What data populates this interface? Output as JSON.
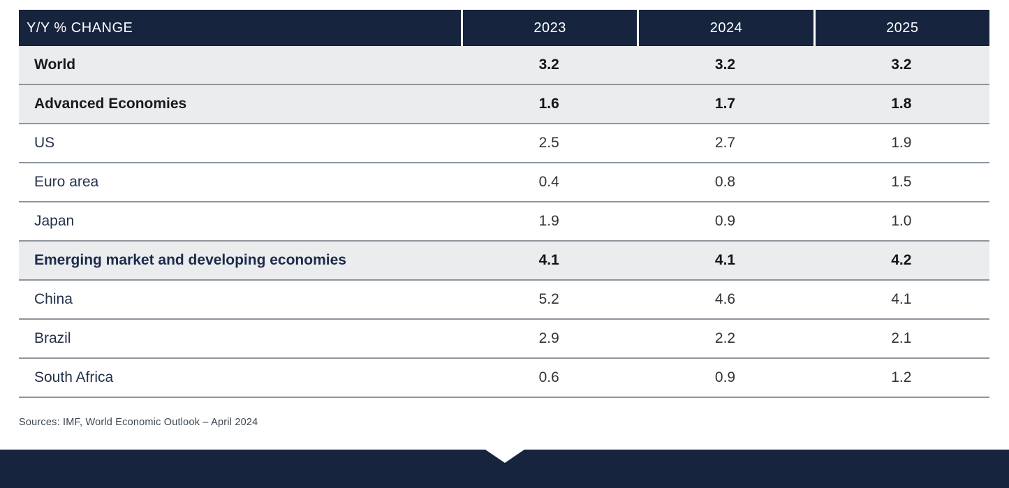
{
  "table": {
    "header": {
      "label": "Y/Y % CHANGE",
      "years": [
        "2023",
        "2024",
        "2025"
      ]
    },
    "rows": [
      {
        "label": "World",
        "values": [
          "3.2",
          "3.2",
          "3.2"
        ],
        "emphasis": true
      },
      {
        "label": "Advanced Economies",
        "values": [
          "1.6",
          "1.7",
          "1.8"
        ],
        "emphasis": true
      },
      {
        "label": "US",
        "values": [
          "2.5",
          "2.7",
          "1.9"
        ],
        "emphasis": false
      },
      {
        "label": "Euro area",
        "values": [
          "0.4",
          "0.8",
          "1.5"
        ],
        "emphasis": false
      },
      {
        "label": "Japan",
        "values": [
          "1.9",
          "0.9",
          "1.0"
        ],
        "emphasis": false
      },
      {
        "label": "Emerging market and developing economies",
        "values": [
          "4.1",
          "4.1",
          "4.2"
        ],
        "emphasis": true
      },
      {
        "label": "China",
        "values": [
          "5.2",
          "4.6",
          "4.1"
        ],
        "emphasis": false
      },
      {
        "label": "Brazil",
        "values": [
          "2.9",
          "2.2",
          "2.1"
        ],
        "emphasis": false
      },
      {
        "label": "South Africa",
        "values": [
          "0.6",
          "0.9",
          "1.2"
        ],
        "emphasis": false
      }
    ]
  },
  "footer": {
    "source": "Sources: IMF, World Economic Outlook – April 2024"
  },
  "colors": {
    "navy": "#16243E",
    "row_shade_gray": "#EBECEE",
    "separator_gray": "#8E959D",
    "navy_text": "#1B2B4A",
    "header_text": "#FFFFFF"
  },
  "chart_data": {
    "type": "table",
    "title": "Y/Y % CHANGE",
    "categories": [
      "2023",
      "2024",
      "2025"
    ],
    "series": [
      {
        "name": "World",
        "values": [
          3.2,
          3.2,
          3.2
        ]
      },
      {
        "name": "Advanced Economies",
        "values": [
          1.6,
          1.7,
          1.8
        ]
      },
      {
        "name": "US",
        "values": [
          2.5,
          2.7,
          1.9
        ]
      },
      {
        "name": "Euro area",
        "values": [
          0.4,
          0.8,
          1.5
        ]
      },
      {
        "name": "Japan",
        "values": [
          1.9,
          0.9,
          1.0
        ]
      },
      {
        "name": "Emerging market and developing economies",
        "values": [
          4.1,
          4.1,
          4.2
        ]
      },
      {
        "name": "China",
        "values": [
          5.2,
          4.6,
          4.1
        ]
      },
      {
        "name": "Brazil",
        "values": [
          2.9,
          2.2,
          2.1
        ]
      },
      {
        "name": "South Africa",
        "values": [
          0.6,
          0.9,
          1.2
        ]
      }
    ],
    "source": "Sources: IMF, World Economic Outlook – April 2024"
  }
}
